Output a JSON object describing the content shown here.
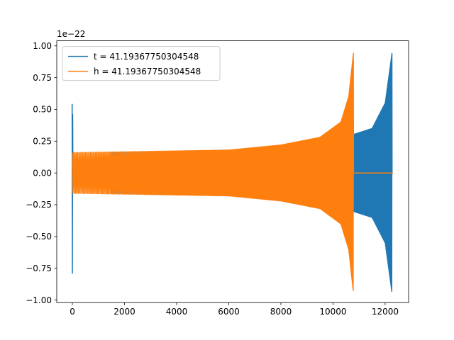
{
  "chart_data": {
    "type": "line",
    "title": "",
    "xlabel": "",
    "ylabel": "",
    "y_offset_label": "1e−22",
    "xlim": [
      -600,
      12900
    ],
    "ylim": [
      -1.02,
      1.04
    ],
    "xticks": [
      0,
      2000,
      4000,
      6000,
      8000,
      10000,
      12000
    ],
    "xtick_labels": [
      "0",
      "2000",
      "4000",
      "6000",
      "8000",
      "10000",
      "12000"
    ],
    "yticks": [
      -1.0,
      -0.75,
      -0.5,
      -0.25,
      0.0,
      0.25,
      0.5,
      0.75,
      1.0
    ],
    "ytick_labels": [
      "−1.00",
      "−0.75",
      "−0.50",
      "−0.25",
      "0.00",
      "0.25",
      "0.50",
      "0.75",
      "1.00"
    ],
    "grid": false,
    "legend_position": "upper left",
    "series": [
      {
        "name": "t = 41.19367750304548",
        "color": "#1f77b4",
        "description": "chirp waveform: spike at x=0 (range -0.79 to 0.54), zero until ~1500, oscillation amplitude growing from 0.16 to 0.94 near x=12260, merger, then ends at ~12300",
        "start_spike": {
          "x": 0,
          "max": 0.54,
          "min": -0.79
        },
        "flat_until": 1500,
        "merger_x": 12260,
        "end_x": 12300,
        "amplitude_profile": [
          {
            "x": 1500,
            "amp": 0.16
          },
          {
            "x": 4000,
            "amp": 0.17
          },
          {
            "x": 8000,
            "amp": 0.19
          },
          {
            "x": 10000,
            "amp": 0.25
          },
          {
            "x": 11500,
            "amp": 0.35
          },
          {
            "x": 12000,
            "amp": 0.55
          },
          {
            "x": 12260,
            "amp": 0.94
          }
        ],
        "merger_min": -0.92
      },
      {
        "name": "h = 41.19367750304548",
        "color": "#ff7f0e",
        "description": "chirp waveform starting at x=0, amplitude growing from 0.16 to 0.94 near x=10780, then flat zero until ~12300",
        "start_x": 0,
        "merger_x": 10780,
        "end_x": 12300,
        "amplitude_profile": [
          {
            "x": 0,
            "amp": 0.16
          },
          {
            "x": 3000,
            "amp": 0.17
          },
          {
            "x": 6000,
            "amp": 0.18
          },
          {
            "x": 8000,
            "amp": 0.22
          },
          {
            "x": 9500,
            "amp": 0.28
          },
          {
            "x": 10300,
            "amp": 0.4
          },
          {
            "x": 10600,
            "amp": 0.6
          },
          {
            "x": 10780,
            "amp": 0.94
          }
        ],
        "merger_min": -0.92
      }
    ]
  }
}
